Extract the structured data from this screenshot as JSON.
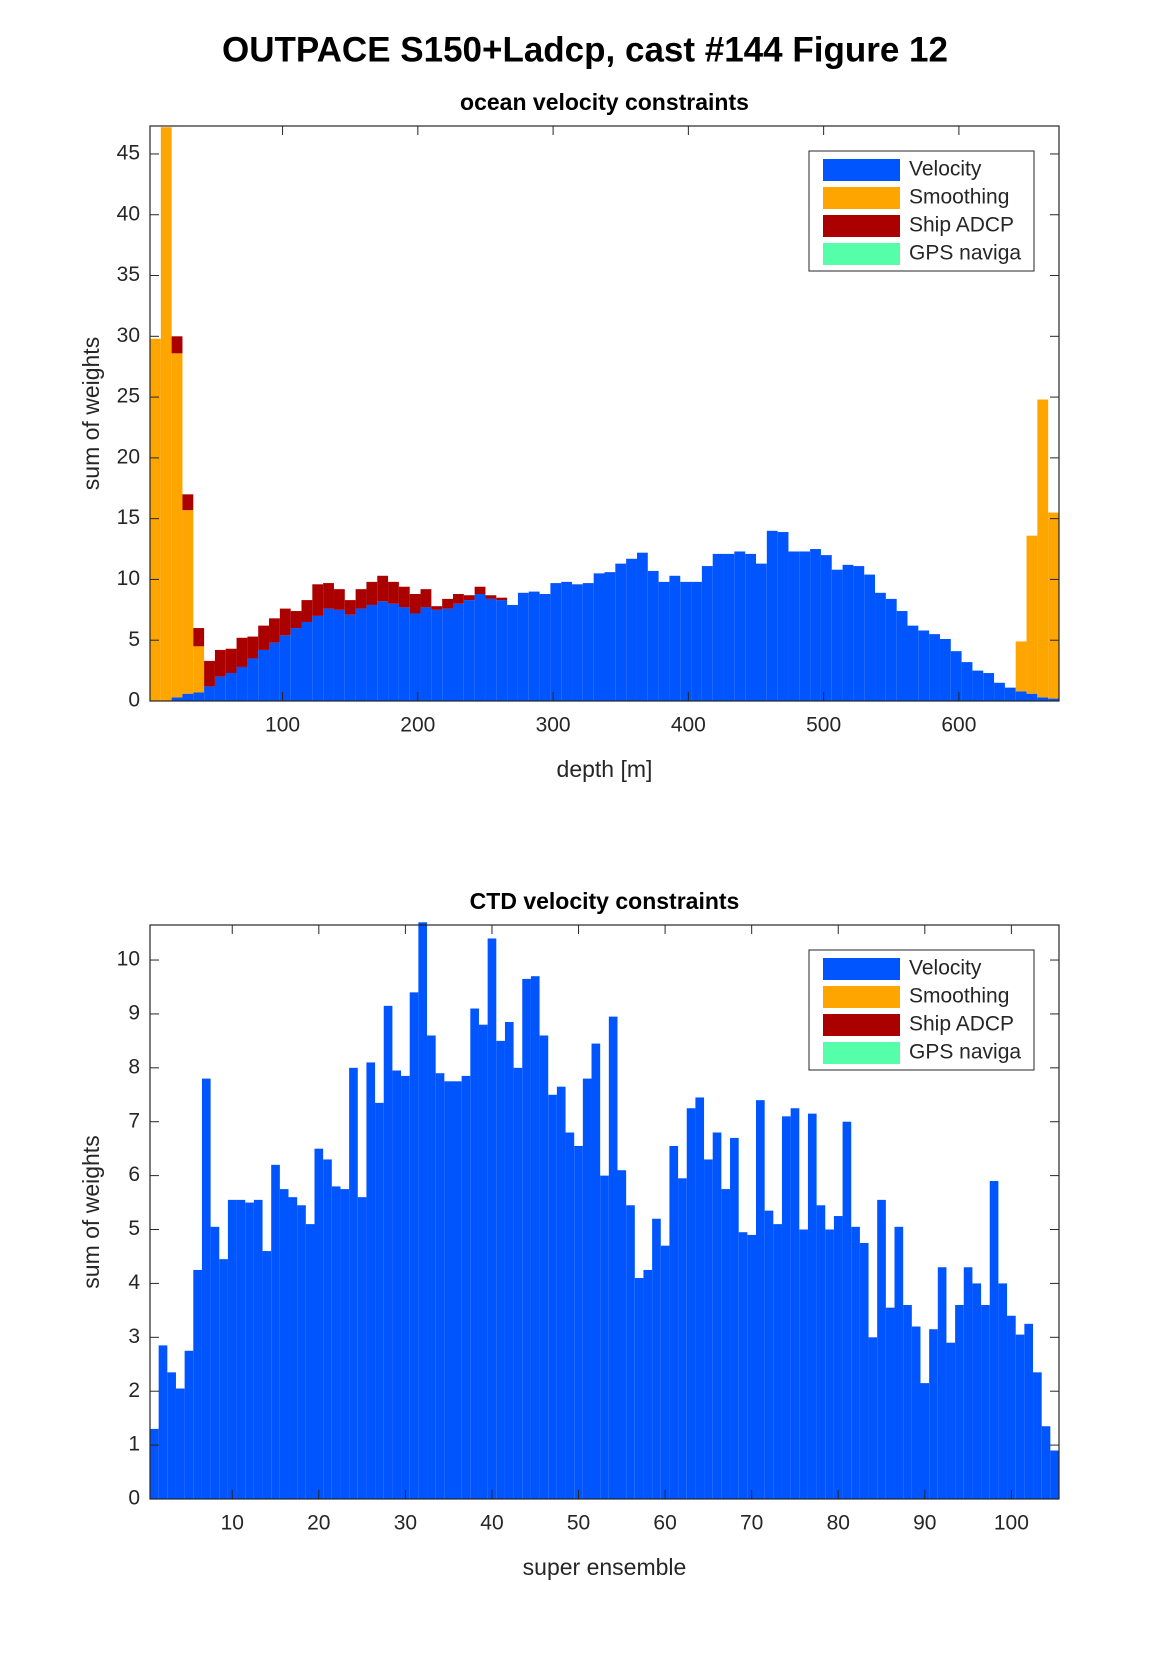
{
  "figure_title": "OUTPACE S150+Ladcp, cast #144  Figure 12",
  "chart_data": [
    {
      "type": "stacked_histogram",
      "title": "ocean velocity constraints",
      "xlabel": "depth [m]",
      "ylabel": "sum of weights",
      "bins": [
        2,
        10,
        18,
        26,
        34,
        42,
        50,
        58,
        66,
        74,
        82,
        90,
        98,
        106,
        114,
        122,
        130,
        138,
        146,
        154,
        162,
        170,
        178,
        186,
        194,
        202,
        210,
        218,
        226,
        234,
        242,
        250,
        258,
        266,
        274,
        282,
        290,
        298,
        306,
        314,
        322,
        330,
        338,
        346,
        354,
        362,
        370,
        378,
        386,
        394,
        402,
        410,
        418,
        426,
        434,
        442,
        450,
        458,
        466,
        474,
        482,
        490,
        498,
        506,
        514,
        522,
        530,
        538,
        546,
        554,
        562,
        570,
        578,
        586,
        594,
        602,
        610,
        618,
        626,
        634,
        642,
        650,
        658,
        666,
        674
      ],
      "series": [
        {
          "name": "Velocity",
          "color": "#0055ff",
          "values": [
            0,
            0,
            0.3,
            0.6,
            0.7,
            1.2,
            2,
            2.3,
            2.8,
            3.5,
            4.2,
            4.8,
            5.4,
            6,
            6.5,
            7,
            7.6,
            7.5,
            7.1,
            7.6,
            7.9,
            8.2,
            8.0,
            7.7,
            7.2,
            7.7,
            7.5,
            7.6,
            8.0,
            8.3,
            8.8,
            8.4,
            8.3,
            7.9,
            8.9,
            9.0,
            8.8,
            9.7,
            9.8,
            9.6,
            9.7,
            10.5,
            10.6,
            11.3,
            11.7,
            12.2,
            10.7,
            9.8,
            10.3,
            9.8,
            9.8,
            11.1,
            12.1,
            12.1,
            12.3,
            12.1,
            11.3,
            14.0,
            13.9,
            12.3,
            12.3,
            12.5,
            12.0,
            10.8,
            11.2,
            11.1,
            10.4,
            8.9,
            8.4,
            7.4,
            6.2,
            5.8,
            5.5,
            5.1,
            4.1,
            3.2,
            2.5,
            2.3,
            1.5,
            1.1,
            0.8,
            0.6,
            0.3,
            0.2
          ]
        },
        {
          "name": "Smoothing",
          "color": "#ffa500",
          "values": [
            29.8,
            47.2,
            28.3,
            15.1,
            3.8,
            0,
            0,
            0,
            0,
            0,
            0,
            0,
            0,
            0,
            0,
            0,
            0,
            0,
            0,
            0,
            0,
            0,
            0,
            0,
            0,
            0,
            0,
            0,
            0,
            0,
            0,
            0,
            0,
            0,
            0,
            0,
            0,
            0,
            0,
            0,
            0,
            0,
            0,
            0,
            0,
            0,
            0,
            0,
            0,
            0,
            0,
            0,
            0,
            0,
            0,
            0,
            0,
            0,
            0,
            0,
            0,
            0,
            0,
            0,
            0,
            0,
            0,
            0,
            0,
            0,
            0,
            0,
            0,
            0,
            0,
            0,
            0,
            0,
            0,
            0,
            4.1,
            13,
            24.5,
            15.3
          ]
        },
        {
          "name": "Ship ADCP",
          "color": "#aa0000",
          "values": [
            0,
            0,
            1.4,
            1.3,
            1.5,
            2.1,
            2.2,
            2.0,
            2.4,
            1.8,
            2.0,
            2.0,
            2.2,
            1.4,
            1.8,
            2.6,
            2.1,
            1.7,
            1.2,
            1.6,
            1.9,
            2.1,
            1.8,
            1.7,
            1.6,
            1.5,
            0.3,
            0.8,
            0.8,
            0.4,
            0.6,
            0.3,
            0.2,
            0,
            0,
            0,
            0,
            0,
            0,
            0,
            0,
            0,
            0,
            0,
            0,
            0,
            0,
            0,
            0,
            0,
            0,
            0,
            0,
            0,
            0,
            0,
            0,
            0,
            0,
            0,
            0,
            0,
            0,
            0,
            0,
            0,
            0,
            0,
            0,
            0,
            0,
            0,
            0,
            0,
            0,
            0,
            0,
            0,
            0,
            0,
            0,
            0,
            0,
            0
          ]
        },
        {
          "name": "GPS naviga",
          "color": "#55ffaa",
          "values": [
            0,
            0,
            0,
            0,
            0,
            0,
            0,
            0,
            0,
            0,
            0,
            0,
            0,
            0,
            0,
            0,
            0,
            0,
            0,
            0,
            0,
            0,
            0,
            0,
            0,
            0,
            0,
            0,
            0,
            0,
            0,
            0,
            0,
            0,
            0,
            0,
            0,
            0,
            0,
            0,
            0,
            0,
            0,
            0,
            0,
            0,
            0,
            0,
            0,
            0,
            0,
            0,
            0,
            0,
            0,
            0,
            0,
            0,
            0,
            0,
            0,
            0,
            0,
            0,
            0,
            0,
            0,
            0,
            0,
            0,
            0,
            0,
            0,
            0,
            0,
            0,
            0,
            0,
            0,
            0,
            0,
            0,
            0,
            0
          ]
        }
      ],
      "xlim": [
        2,
        674
      ],
      "xticks": [
        100,
        200,
        300,
        400,
        500,
        600
      ],
      "ylim": [
        0,
        47.3
      ],
      "yticks": [
        0,
        5,
        10,
        15,
        20,
        25,
        30,
        35,
        40,
        45
      ],
      "legend": "upper right"
    },
    {
      "type": "stacked_bar",
      "title": "CTD velocity constraints",
      "xlabel": "super ensemble",
      "ylabel": "sum of weights",
      "x": [
        1,
        2,
        3,
        4,
        5,
        6,
        7,
        8,
        9,
        10,
        11,
        12,
        13,
        14,
        15,
        16,
        17,
        18,
        19,
        20,
        21,
        22,
        23,
        24,
        25,
        26,
        27,
        28,
        29,
        30,
        31,
        32,
        33,
        34,
        35,
        36,
        37,
        38,
        39,
        40,
        41,
        42,
        43,
        44,
        45,
        46,
        47,
        48,
        49,
        50,
        51,
        52,
        53,
        54,
        55,
        56,
        57,
        58,
        59,
        60,
        61,
        62,
        63,
        64,
        65,
        66,
        67,
        68,
        69,
        70,
        71,
        72,
        73,
        74,
        75,
        76,
        77,
        78,
        79,
        80,
        81,
        82,
        83,
        84,
        85,
        86,
        87,
        88,
        89,
        90,
        91,
        92,
        93,
        94,
        95,
        96,
        97,
        98,
        99,
        100,
        101,
        102,
        103,
        104,
        105
      ],
      "series": [
        {
          "name": "Velocity",
          "color": "#0055ff",
          "values": [
            1.3,
            2.85,
            2.35,
            2.05,
            2.75,
            4.25,
            7.8,
            5.05,
            4.45,
            5.55,
            5.55,
            5.5,
            5.55,
            4.6,
            6.2,
            5.75,
            5.6,
            5.45,
            5.1,
            6.5,
            6.3,
            5.8,
            5.75,
            8.0,
            5.6,
            8.1,
            7.35,
            9.15,
            7.95,
            7.85,
            9.4,
            10.7,
            8.6,
            7.9,
            7.75,
            7.75,
            7.85,
            9.1,
            8.8,
            10.4,
            8.5,
            8.85,
            8.0,
            9.65,
            9.7,
            8.6,
            7.5,
            7.65,
            6.8,
            6.55,
            7.8,
            8.45,
            6.0,
            8.95,
            6.1,
            5.45,
            4.1,
            4.25,
            5.2,
            4.7,
            6.55,
            5.95,
            7.25,
            7.45,
            6.3,
            6.8,
            5.75,
            6.7,
            4.95,
            4.9,
            7.4,
            5.35,
            5.1,
            7.1,
            7.25,
            5.0,
            7.15,
            5.45,
            5.0,
            5.25,
            7.0,
            5.05,
            4.75,
            3.0,
            5.55,
            3.55,
            5.05,
            3.6,
            3.2,
            2.15,
            3.15,
            4.3,
            2.9,
            3.6,
            4.3,
            4.0,
            3.6,
            5.9,
            4.0,
            3.4,
            3.05,
            3.25,
            2.35,
            1.35,
            0.9
          ]
        },
        {
          "name": "Smoothing",
          "color": "#ffa500",
          "values": [
            0,
            0,
            0,
            0,
            0,
            0,
            0,
            0,
            0,
            0,
            0,
            0,
            0,
            0,
            0,
            0,
            0,
            0,
            0,
            0,
            0,
            0,
            0,
            0,
            0,
            0,
            0,
            0,
            0,
            0,
            0,
            0,
            0,
            0,
            0,
            0,
            0,
            0,
            0,
            0,
            0,
            0,
            0,
            0,
            0,
            0,
            0,
            0,
            0,
            0,
            0,
            0,
            0,
            0,
            0,
            0,
            0,
            0,
            0,
            0,
            0,
            0,
            0,
            0,
            0,
            0,
            0,
            0,
            0,
            0,
            0,
            0,
            0,
            0,
            0,
            0,
            0,
            0,
            0,
            0,
            0,
            0,
            0,
            0,
            0,
            0,
            0,
            0,
            0,
            0,
            0,
            0,
            0,
            0,
            0,
            0,
            0,
            0,
            0,
            0,
            0,
            0,
            0,
            0,
            0
          ]
        },
        {
          "name": "Ship ADCP",
          "color": "#aa0000",
          "values": [
            0,
            0,
            0,
            0,
            0,
            0,
            0,
            0,
            0,
            0,
            0,
            0,
            0,
            0,
            0,
            0,
            0,
            0,
            0,
            0,
            0,
            0,
            0,
            0,
            0,
            0,
            0,
            0,
            0,
            0,
            0,
            0,
            0,
            0,
            0,
            0,
            0,
            0,
            0,
            0,
            0,
            0,
            0,
            0,
            0,
            0,
            0,
            0,
            0,
            0,
            0,
            0,
            0,
            0,
            0,
            0,
            0,
            0,
            0,
            0,
            0,
            0,
            0,
            0,
            0,
            0,
            0,
            0,
            0,
            0,
            0,
            0,
            0,
            0,
            0,
            0,
            0,
            0,
            0,
            0,
            0,
            0,
            0,
            0,
            0,
            0,
            0,
            0,
            0,
            0,
            0,
            0,
            0,
            0,
            0,
            0,
            0,
            0,
            0,
            0,
            0,
            0,
            0,
            0,
            0
          ]
        },
        {
          "name": "GPS naviga",
          "color": "#55ffaa",
          "values": [
            0,
            0,
            0,
            0,
            0,
            0,
            0,
            0,
            0,
            0,
            0,
            0,
            0,
            0,
            0,
            0,
            0,
            0,
            0,
            0,
            0,
            0,
            0,
            0,
            0,
            0,
            0,
            0,
            0,
            0,
            0,
            0,
            0,
            0,
            0,
            0,
            0,
            0,
            0,
            0,
            0,
            0,
            0,
            0,
            0,
            0,
            0,
            0,
            0,
            0,
            0,
            0,
            0,
            0,
            0,
            0,
            0,
            0,
            0,
            0,
            0,
            0,
            0,
            0,
            0,
            0,
            0,
            0,
            0,
            0,
            0,
            0,
            0,
            0,
            0,
            0,
            0,
            0,
            0,
            0,
            0,
            0,
            0,
            0,
            0,
            0,
            0,
            0,
            0,
            0,
            0,
            0,
            0,
            0,
            0,
            0,
            0,
            0,
            0,
            0,
            0,
            0,
            0,
            0,
            0
          ]
        }
      ],
      "xlim": [
        0.5,
        105.5
      ],
      "xticks": [
        10,
        20,
        30,
        40,
        50,
        60,
        70,
        80,
        90,
        100
      ],
      "ylim": [
        0,
        10.65
      ],
      "yticks": [
        0,
        1,
        2,
        3,
        4,
        5,
        6,
        7,
        8,
        9,
        10
      ],
      "legend": "upper right"
    }
  ]
}
